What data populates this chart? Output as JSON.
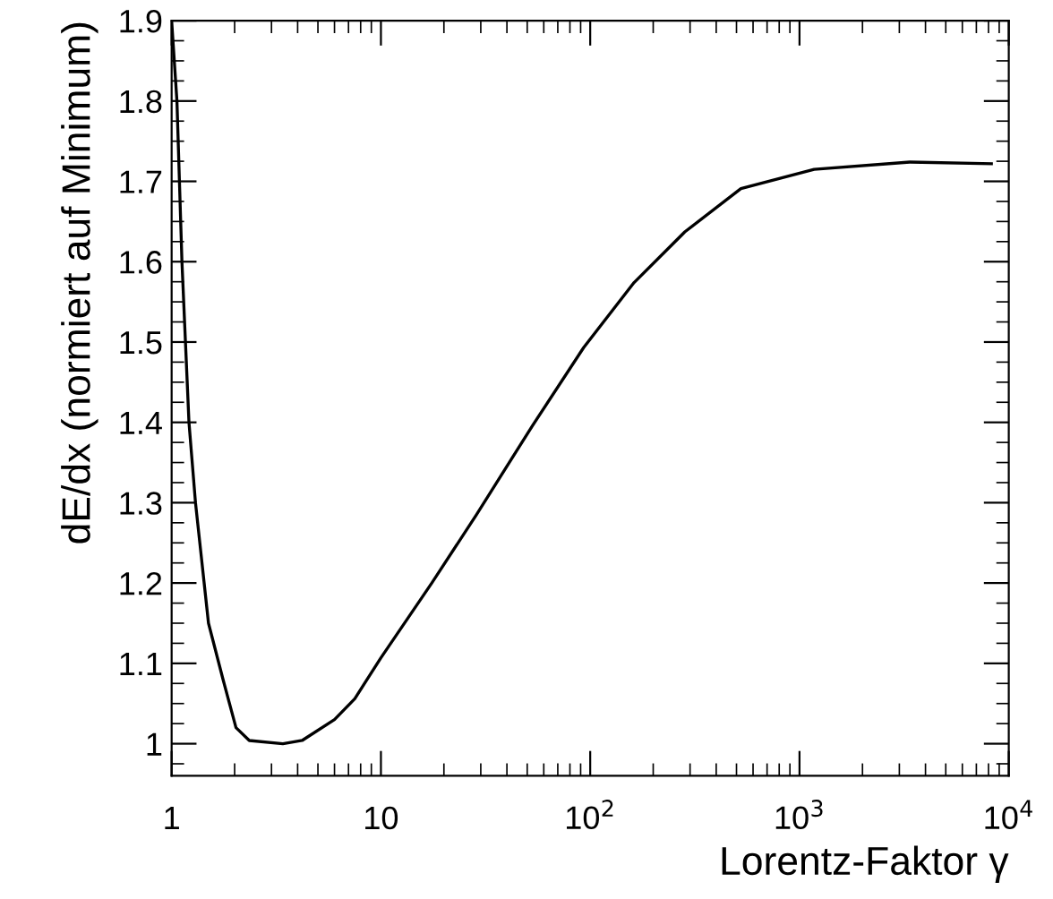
{
  "chart_data": {
    "type": "line",
    "xlabel": "Lorentz-Faktor γ",
    "ylabel": "dE/dx (normiert auf Minimum)",
    "log": "x",
    "xlim": [
      1,
      10000
    ],
    "ylim": [
      0.96,
      1.9
    ],
    "xticks": [
      1,
      10,
      {
        "value": 100,
        "label": "10$^{2}$"
      },
      {
        "value": 1000,
        "label": "10$^{3}$"
      },
      {
        "value": 10000,
        "label": "10$^{4}$"
      }
    ],
    "yticks": [
      1,
      1.1,
      1.2,
      1.3,
      1.4,
      1.5,
      1.6,
      1.7,
      1.8,
      1.9
    ],
    "grid": false,
    "marker": "none",
    "line_style": "solid",
    "series": [
      {
        "color": "#000000",
        "x": [
          1.0,
          1.06,
          1.12,
          1.21,
          1.3,
          1.5,
          1.76,
          2.03,
          2.35,
          3.4,
          4.2,
          6.0,
          7.5,
          10,
          17.5,
          28.6,
          53,
          93,
          162,
          283,
          525,
          1175,
          3365,
          8260
        ],
        "values": [
          1.9,
          1.8,
          1.6,
          1.4,
          1.3,
          1.15,
          1.08,
          1.02,
          1.004,
          1.0,
          1.004,
          1.03,
          1.056,
          1.107,
          1.2,
          1.285,
          1.396,
          1.493,
          1.574,
          1.637,
          1.691,
          1.715,
          1.724,
          1.722
        ]
      }
    ]
  }
}
